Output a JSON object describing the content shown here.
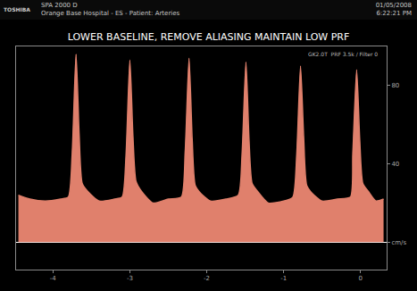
{
  "header": {
    "brand": "TOSHIBA",
    "line1": "SPA 2000   D",
    "line2": "Orange Base Hospital   - ES -   Patient: Arteries",
    "date": "01/05/2008",
    "time": "6:22:21 PM"
  },
  "chart_data": {
    "type": "area",
    "title": "LOWER BASELINE, REMOVE ALIASING MAINTAIN LOW PRF",
    "annotations": [
      "GK2.0T  PRF 3.5k / Filter 0"
    ],
    "x": [
      -4.45,
      -4.3,
      -4.1,
      -3.9,
      -3.8,
      -3.75,
      -3.7,
      -3.66,
      -3.62,
      -3.55,
      -3.4,
      -3.2,
      -3.1,
      -3.05,
      -3.0,
      -2.96,
      -2.92,
      -2.85,
      -2.7,
      -2.5,
      -2.33,
      -2.28,
      -2.23,
      -2.19,
      -2.15,
      -2.08,
      -1.95,
      -1.75,
      -1.59,
      -1.54,
      -1.49,
      -1.45,
      -1.41,
      -1.34,
      -1.2,
      -1.0,
      -0.88,
      -0.83,
      -0.78,
      -0.74,
      -0.7,
      -0.63,
      -0.5,
      -0.3,
      -0.13,
      -0.1,
      -0.05,
      -0.01,
      0.03,
      0.1,
      0.2,
      0.3
    ],
    "values": [
      24,
      22,
      21,
      22,
      23,
      45,
      96,
      55,
      30,
      26,
      21,
      22,
      23,
      44,
      93,
      54,
      31,
      26,
      20,
      22,
      23,
      46,
      94,
      53,
      29,
      25,
      21,
      22,
      24,
      45,
      92,
      52,
      30,
      26,
      20,
      21,
      23,
      44,
      90,
      54,
      29,
      25,
      21,
      22,
      23,
      45,
      88,
      52,
      30,
      26,
      21,
      22
    ],
    "color": "#e0806c",
    "xlim": [
      -4.48,
      0.34
    ],
    "xticks": [
      -4,
      -3,
      -2,
      -1,
      0
    ],
    "ylim": [
      -14,
      100
    ],
    "yticks": [
      {
        "value": 0,
        "label": "cm/s"
      },
      40,
      80
    ],
    "grid": false
  }
}
